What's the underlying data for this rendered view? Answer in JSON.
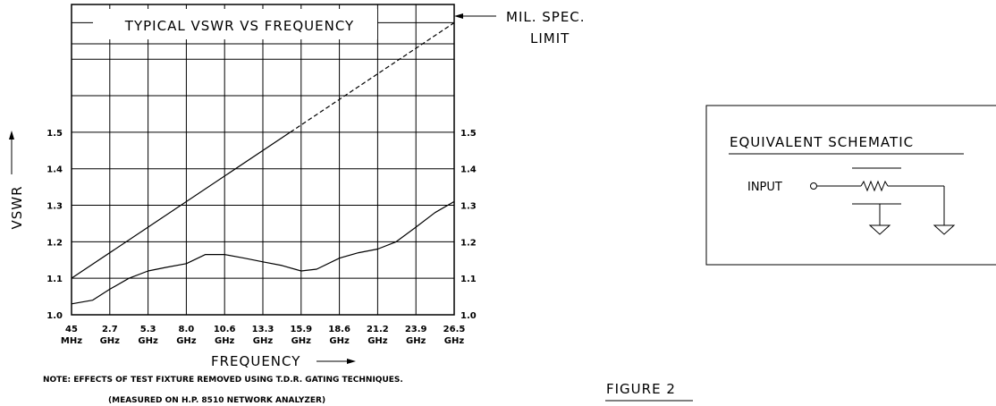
{
  "chart_data": {
    "type": "line",
    "title": "TYPICAL VSWR VS FREQUENCY",
    "xlabel": "FREQUENCY",
    "ylabel": "VSWR",
    "ylim": [
      1.0,
      1.85
    ],
    "grid": true,
    "x_ticks": [
      {
        "value": "45",
        "unit": "MHz"
      },
      {
        "value": "2.7",
        "unit": "GHz"
      },
      {
        "value": "5.3",
        "unit": "GHz"
      },
      {
        "value": "8.0",
        "unit": "GHz"
      },
      {
        "value": "10.6",
        "unit": "GHz"
      },
      {
        "value": "13.3",
        "unit": "GHz"
      },
      {
        "value": "15.9",
        "unit": "GHz"
      },
      {
        "value": "18.6",
        "unit": "GHz"
      },
      {
        "value": "21.2",
        "unit": "GHz"
      },
      {
        "value": "23.9",
        "unit": "GHz"
      },
      {
        "value": "26.5",
        "unit": "GHz"
      }
    ],
    "y_ticks": [
      "1.0",
      "1.1",
      "1.2",
      "1.3",
      "1.4",
      "1.5"
    ],
    "series": [
      {
        "name": "MIL. SPEC. LIMIT",
        "style": "limit",
        "x": [
          0.045,
          26.5
        ],
        "y": [
          1.1,
          1.8
        ]
      },
      {
        "name": "",
        "style": "measured",
        "x": [
          0.045,
          1.5,
          2.7,
          4.0,
          5.3,
          6.6,
          8.0,
          9.3,
          10.6,
          12.0,
          13.3,
          14.6,
          15.9,
          17.0,
          18.6,
          19.9,
          21.2,
          22.5,
          23.9,
          25.2,
          26.5
        ],
        "y": [
          1.03,
          1.04,
          1.07,
          1.1,
          1.12,
          1.13,
          1.14,
          1.165,
          1.165,
          1.155,
          1.145,
          1.135,
          1.12,
          1.125,
          1.155,
          1.17,
          1.18,
          1.2,
          1.24,
          1.28,
          1.31
        ]
      }
    ],
    "annotations": {
      "limit_label_1": "MIL. SPEC.",
      "limit_label_2": "LIMIT",
      "note_1": "NOTE: EFFECTS OF TEST FIXTURE REMOVED USING T.D.R. GATING TECHNIQUES.",
      "note_2": "(MEASURED ON H.P. 8510 NETWORK ANALYZER)"
    }
  },
  "schematic": {
    "title": "EQUIVALENT SCHEMATIC",
    "input_label": "INPUT"
  },
  "figure_label": "FIGURE 2"
}
